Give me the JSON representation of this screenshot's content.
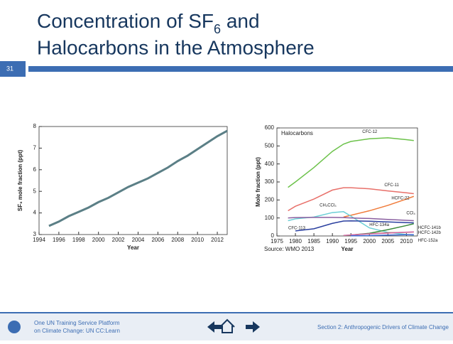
{
  "slide": {
    "number": "31",
    "title": [
      "Concentration of SF",
      "6",
      " and",
      "Halocarbons in the Atmosphere"
    ],
    "source": "Source: WMO 2013",
    "footer": {
      "org": [
        "One UN Training Service Platform",
        "on Climate Change: UN CC:Learn"
      ],
      "section": "Section 2: Anthropogenic Drivers of Climate Change"
    }
  },
  "chart_data": [
    {
      "type": "line",
      "x_label": "Year",
      "y_label": "SF₆ mole fraction (ppt)",
      "x": [
        1995,
        1996,
        1997,
        1998,
        1999,
        2000,
        2001,
        2002,
        2003,
        2004,
        2005,
        2006,
        2007,
        2008,
        2009,
        2010,
        2011,
        2012,
        2013
      ],
      "values": [
        3.4,
        3.6,
        3.85,
        4.05,
        4.25,
        4.5,
        4.7,
        4.95,
        5.2,
        5.4,
        5.6,
        5.85,
        6.1,
        6.4,
        6.65,
        6.95,
        7.25,
        7.55,
        7.8
      ],
      "color": "#5b7f86",
      "xlim": [
        1994,
        2013
      ],
      "xticks": [
        1994,
        1996,
        1998,
        2000,
        2002,
        2004,
        2006,
        2008,
        2010,
        2012
      ],
      "ylim": [
        3,
        8
      ],
      "yticks": [
        3,
        4,
        5,
        6,
        7,
        8
      ]
    },
    {
      "type": "line",
      "title": "Halocarbons",
      "x_label": "Year",
      "y_label": "Mole fraction (ppt)",
      "x": [
        1978,
        1980,
        1985,
        1990,
        1993,
        1995,
        2000,
        2005,
        2010,
        2012
      ],
      "series": [
        {
          "name": "CFC-12",
          "color": "#6cc24a",
          "values": [
            270,
            300,
            380,
            470,
            510,
            525,
            540,
            545,
            535,
            530
          ]
        },
        {
          "name": "CFC-11",
          "color": "#e8706a",
          "values": [
            140,
            165,
            205,
            255,
            268,
            268,
            262,
            250,
            240,
            235
          ]
        },
        {
          "name": "HCFC-22",
          "color": "#f07b3a",
          "values": [
            null,
            null,
            null,
            null,
            105,
            115,
            140,
            170,
            205,
            220
          ]
        },
        {
          "name": "CH₃CCl₃",
          "color": "#6ccfd6",
          "values": [
            85,
            95,
            105,
            130,
            135,
            110,
            45,
            20,
            8,
            5
          ]
        },
        {
          "name": "CCl₄",
          "color": "#8a5fa0",
          "values": [
            100,
            102,
            103,
            103,
            102,
            100,
            97,
            92,
            87,
            85
          ]
        },
        {
          "name": "HFC-134a",
          "color": "#3a8a3a",
          "values": [
            null,
            null,
            null,
            null,
            2,
            5,
            15,
            35,
            58,
            68
          ]
        },
        {
          "name": "CFC-113",
          "color": "#2a3f9f",
          "values": [
            null,
            28,
            40,
            70,
            83,
            84,
            82,
            78,
            74,
            73
          ]
        },
        {
          "name": "HCFC-141b",
          "color": "#9b6a3a",
          "values": [
            null,
            null,
            null,
            null,
            null,
            5,
            12,
            18,
            20,
            22
          ]
        },
        {
          "name": "HCFC-142b",
          "color": "#d66aa8",
          "values": [
            null,
            null,
            null,
            null,
            3,
            6,
            12,
            16,
            21,
            22
          ]
        },
        {
          "name": "HFC-152a",
          "color": "#3a6ad6",
          "values": [
            null,
            null,
            null,
            null,
            null,
            1,
            2,
            5,
            7,
            7
          ]
        }
      ],
      "xlim": [
        1975,
        2013
      ],
      "xticks": [
        1975,
        1980,
        1985,
        1990,
        1995,
        2000,
        2005,
        2010
      ],
      "ylim": [
        0,
        600
      ],
      "yticks": [
        0,
        100,
        200,
        300,
        400,
        500,
        600
      ]
    }
  ]
}
